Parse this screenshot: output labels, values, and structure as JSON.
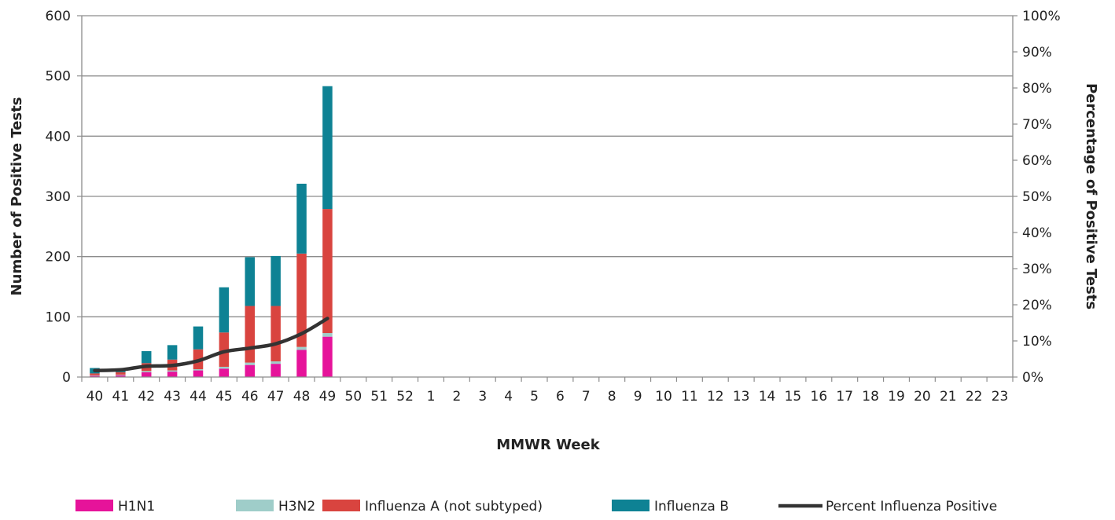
{
  "chart_data": {
    "type": "bar",
    "stacked": true,
    "categories": [
      "40",
      "41",
      "42",
      "43",
      "44",
      "45",
      "46",
      "47",
      "48",
      "49",
      "50",
      "51",
      "52",
      "1",
      "2",
      "3",
      "4",
      "5",
      "6",
      "7",
      "8",
      "9",
      "10",
      "11",
      "12",
      "13",
      "14",
      "15",
      "16",
      "17",
      "18",
      "19",
      "20",
      "21",
      "22",
      "23"
    ],
    "series": [
      {
        "name": "H1N1",
        "color": "#e6139a",
        "values": [
          2,
          3,
          8,
          9,
          11,
          14,
          20,
          22,
          45,
          67,
          0,
          0,
          0,
          0,
          0,
          0,
          0,
          0,
          0,
          0,
          0,
          0,
          0,
          0,
          0,
          0,
          0,
          0,
          0,
          0,
          0,
          0,
          0,
          0,
          0,
          0
        ]
      },
      {
        "name": "H3N2",
        "color": "#9fcdc9",
        "values": [
          1,
          1,
          2,
          2,
          2,
          3,
          4,
          4,
          5,
          6,
          0,
          0,
          0,
          0,
          0,
          0,
          0,
          0,
          0,
          0,
          0,
          0,
          0,
          0,
          0,
          0,
          0,
          0,
          0,
          0,
          0,
          0,
          0,
          0,
          0,
          0
        ]
      },
      {
        "name": "Influenza A (not subtyped)",
        "color": "#d9443f",
        "values": [
          3,
          4,
          13,
          18,
          33,
          57,
          94,
          92,
          155,
          206,
          0,
          0,
          0,
          0,
          0,
          0,
          0,
          0,
          0,
          0,
          0,
          0,
          0,
          0,
          0,
          0,
          0,
          0,
          0,
          0,
          0,
          0,
          0,
          0,
          0,
          0
        ]
      },
      {
        "name": "Influenza B",
        "color": "#0e8294",
        "values": [
          9,
          2,
          20,
          24,
          38,
          75,
          81,
          83,
          116,
          204,
          0,
          0,
          0,
          0,
          0,
          0,
          0,
          0,
          0,
          0,
          0,
          0,
          0,
          0,
          0,
          0,
          0,
          0,
          0,
          0,
          0,
          0,
          0,
          0,
          0,
          0
        ]
      }
    ],
    "line_series": {
      "name": "Percent Influenza Positive",
      "color": "#333333",
      "axis": "right",
      "values": [
        1.8,
        2.0,
        3.0,
        3.2,
        4.5,
        7.0,
        8.0,
        9.2,
        12.0,
        16.2
      ]
    },
    "xlabel": "MMWR Week",
    "ylabel": "Number of Positive Tests",
    "y2label": "Percentage of Positive Tests",
    "ylim": [
      0,
      600
    ],
    "yticks": [
      "0",
      "100",
      "200",
      "300",
      "400",
      "500",
      "600"
    ],
    "y2lim": [
      0,
      100
    ],
    "y2ticks": [
      "0%",
      "10%",
      "20%",
      "30%",
      "40%",
      "50%",
      "60%",
      "70%",
      "80%",
      "90%",
      "100%"
    ],
    "grid": true,
    "legend": "bottom"
  }
}
